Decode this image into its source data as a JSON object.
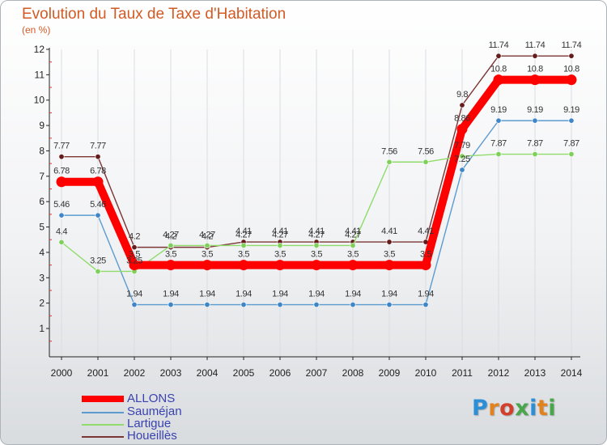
{
  "header": {
    "title": "Evolution du Taux de Taxe d'Habitation",
    "unit": "(en %)"
  },
  "brand": {
    "logo_text": "Proxiti"
  },
  "chart_data": {
    "type": "line",
    "title": "Evolution du Taux de Taxe d'Habitation",
    "ylabel": "(en %)",
    "xlabel": "",
    "x": [
      "2000",
      "2001",
      "2002",
      "2003",
      "2004",
      "2005",
      "2006",
      "2007",
      "2008",
      "2009",
      "2010",
      "2011",
      "2012",
      "2013",
      "2014"
    ],
    "ylim": [
      1,
      12
    ],
    "yticks": [
      "1",
      "2",
      "3",
      "4",
      "5",
      "6",
      "7",
      "8",
      "9",
      "10",
      "11",
      "12"
    ],
    "legend_position": "bottom-left",
    "series": [
      {
        "name": "ALLONS",
        "color": "#ff0000",
        "marker": "#ff0000",
        "values": [
          6.78,
          6.78,
          3.5,
          3.5,
          3.5,
          3.5,
          3.5,
          3.5,
          3.5,
          3.5,
          3.5,
          8.86,
          10.8,
          10.8,
          10.8
        ],
        "labels": [
          "6.78",
          "6.78",
          "3.5",
          "3.5",
          "3.5",
          "3.5",
          "3.5",
          "3.5",
          "3.5",
          "3.5",
          "3.5",
          "8.86",
          "10.8",
          "10.8",
          "10.8"
        ]
      },
      {
        "name": "Sauméjan",
        "color": "#5b9bd0",
        "marker": "#3f86c8",
        "values": [
          5.46,
          5.46,
          1.94,
          1.94,
          1.94,
          1.94,
          1.94,
          1.94,
          1.94,
          1.94,
          1.94,
          7.25,
          9.19,
          9.19,
          9.19
        ],
        "labels": [
          "5.46",
          "5.46",
          "1.94",
          "1.94",
          "1.94",
          "1.94",
          "1.94",
          "1.94",
          "1.94",
          "1.94",
          "1.94",
          "7.25",
          "9.19",
          "9.19",
          "9.19"
        ]
      },
      {
        "name": "Lartigue",
        "color": "#8fdc6a",
        "marker": "#7ed05a",
        "values": [
          4.4,
          3.25,
          3.25,
          4.27,
          4.27,
          4.27,
          4.27,
          4.27,
          4.27,
          7.56,
          7.56,
          7.79,
          7.87,
          7.87,
          7.87
        ],
        "labels": [
          "4.4",
          "3.25",
          "3.25",
          "4.27",
          "4.27",
          "4.27",
          "4.27",
          "4.27",
          "4.27",
          "7.56",
          "7.56",
          "7.79",
          "7.87",
          "7.87",
          "7.87"
        ]
      },
      {
        "name": "Houeillès",
        "color": "#7b3535",
        "marker": "#651c1c",
        "values": [
          7.77,
          7.77,
          4.2,
          4.2,
          4.2,
          4.41,
          4.41,
          4.41,
          4.41,
          4.41,
          4.41,
          9.8,
          11.74,
          11.74,
          11.74
        ],
        "labels": [
          "7.77",
          "7.77",
          "4.2",
          "4.2",
          "4.2",
          "4.41",
          "4.41",
          "4.41",
          "4.41",
          "4.41",
          "4.41",
          "9.8",
          "11.74",
          "11.74",
          "11.74"
        ]
      }
    ]
  }
}
